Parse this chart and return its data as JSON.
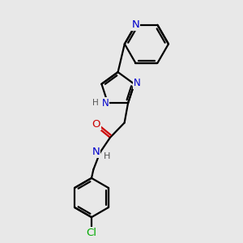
{
  "bg_color": "#e8e8e8",
  "bond_color": "#000000",
  "n_color": "#0000cc",
  "o_color": "#cc0000",
  "cl_color": "#00aa00",
  "h_color": "#555555",
  "line_width": 1.6,
  "font_size": 8.5,
  "fig_size": [
    3.0,
    3.0
  ],
  "dpi": 100,
  "xlim": [
    0,
    10
  ],
  "ylim": [
    0,
    10
  ]
}
